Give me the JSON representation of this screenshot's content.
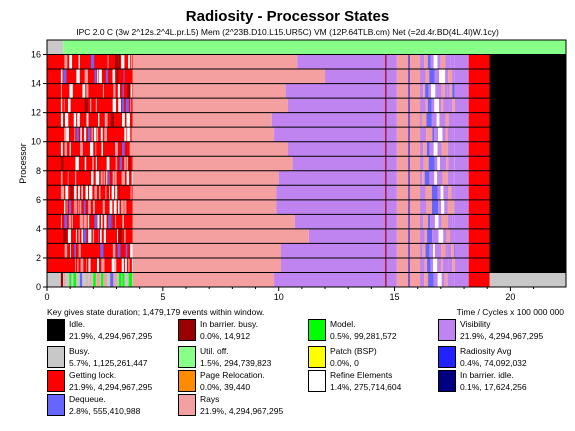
{
  "chart_data": {
    "type": "bar",
    "title": "Radiosity - Processor States",
    "subtitle": "IPC 2.0  C (3w 2^12s.2^4L.pr.L5)  Mem (2^23B.D10.L15.UR5C)  VM (12P.64TLB.cm)  Net (=2d.4r.BD(4L.4l)W.1cy)",
    "ylabel": "Processor",
    "xlabel": "Time / Cycles x 100 000 000",
    "caption": "Key gives state duration; 1,479,179 events within window.",
    "xlim": [
      0,
      22.4
    ],
    "ylim": [
      0,
      17
    ],
    "x_ticks": [
      "0",
      "5",
      "10",
      "15",
      "20"
    ],
    "y_ticks": [
      "0",
      "2",
      "4",
      "6",
      "8",
      "10",
      "12",
      "14",
      "16"
    ],
    "processors": 17,
    "end_time": 19.1,
    "states": [
      {
        "name": "Idle.",
        "value": "21.9%, 4,294,967,295",
        "color": "#000000"
      },
      {
        "name": "In barrier. busy.",
        "value": "0.0%, 14,912",
        "color": "#9b0000"
      },
      {
        "name": "Model.",
        "value": "0.5%, 99,281,572",
        "color": "#00ff00"
      },
      {
        "name": "Visibility",
        "value": "21.9%, 4,294,967,295",
        "color": "#c084f0"
      },
      {
        "name": "Busy.",
        "value": "5.7%, 1,125,261,447",
        "color": "#c8c8c8"
      },
      {
        "name": "Util. off.",
        "value": "1.5%, 294,739,823",
        "color": "#88ff88"
      },
      {
        "name": "Patch (BSP)",
        "value": "0.0%, 0",
        "color": "#ffff00"
      },
      {
        "name": "Radiosity Avg",
        "value": "0.4%, 74,092,032",
        "color": "#2222ff"
      },
      {
        "name": "Getting lock.",
        "value": "21.9%, 4,294,967,295",
        "color": "#ff0000"
      },
      {
        "name": "Page Relocation.",
        "value": "0.0%, 39,440",
        "color": "#ff8c00"
      },
      {
        "name": "Refine Elements",
        "value": "1.4%, 275,714,604",
        "color": "#ffffff"
      },
      {
        "name": "In barrier. idle.",
        "value": "0.1%, 17,624,256",
        "color": "#000080"
      },
      {
        "name": "Dequeue.",
        "value": "2.8%, 555,410,988",
        "color": "#6666ff"
      },
      {
        "name": "Rays",
        "value": "21.9%, 4,294,967,295",
        "color": "#f4a0a0"
      }
    ]
  }
}
